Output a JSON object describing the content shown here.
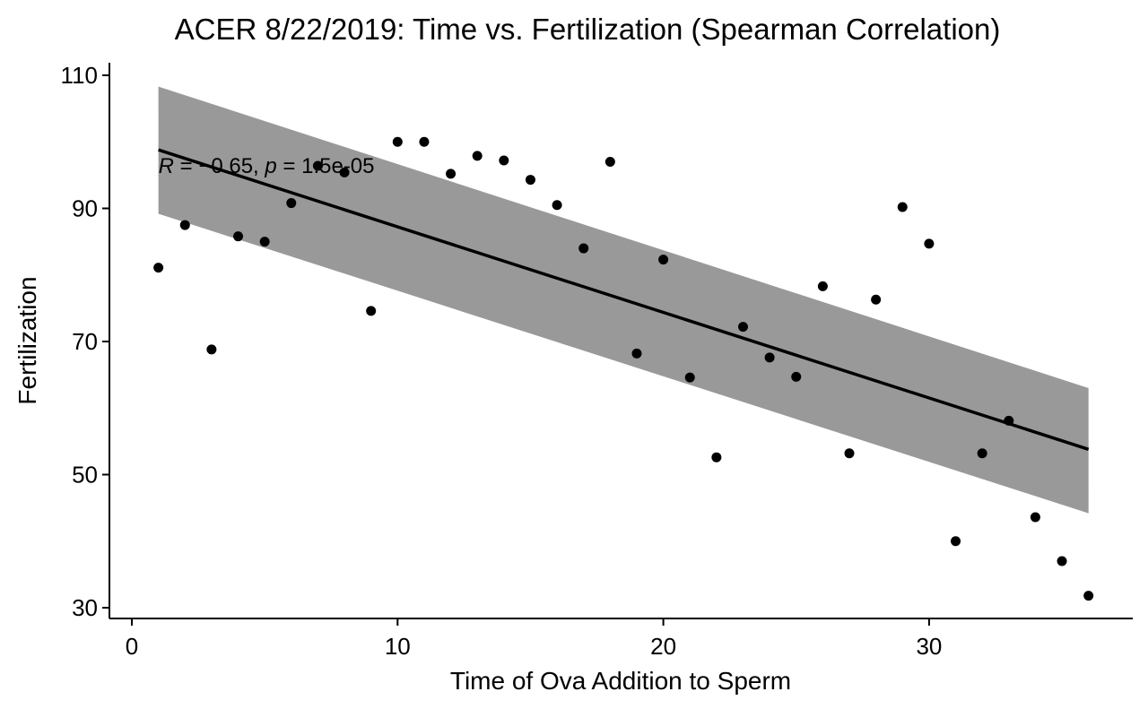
{
  "chart_data": {
    "type": "scatter",
    "title": "ACER 8/22/2019: Time vs. Fertilization (Spearman Correlation)",
    "xlabel": "Time of Ova Addition to Sperm",
    "ylabel": "Fertilization",
    "xlim": [
      -1,
      38
    ],
    "ylim": [
      28,
      111
    ],
    "x_ticks": [
      0,
      10,
      20,
      30
    ],
    "y_ticks": [
      30,
      50,
      70,
      90,
      110
    ],
    "grid": false,
    "legend": "none",
    "point_color": "#000000",
    "line_color": "#000000",
    "band_color": "#999999",
    "points": {
      "x": [
        1,
        2,
        3,
        4,
        5,
        6,
        7,
        8,
        9,
        10,
        11,
        12,
        13,
        14,
        15,
        16,
        17,
        18,
        19,
        20,
        21,
        22,
        23,
        24,
        25,
        26,
        27,
        28,
        29,
        30,
        31,
        32,
        33,
        34,
        35,
        36
      ],
      "y": [
        81.1,
        87.5,
        68.8,
        85.8,
        85.0,
        90.8,
        96.4,
        95.4,
        74.6,
        100.0,
        100.0,
        95.2,
        97.9,
        97.2,
        94.3,
        90.5,
        84.0,
        97.0,
        68.2,
        82.3,
        64.6,
        52.6,
        72.2,
        67.6,
        64.7,
        78.3,
        53.2,
        76.3,
        90.2,
        84.7,
        40.0,
        53.2,
        58.1,
        43.6,
        37.0,
        31.8
      ]
    },
    "regression": {
      "x": [
        1,
        36
      ],
      "y": [
        98.8,
        53.8
      ]
    },
    "confidence_band": {
      "x": [
        1,
        36
      ],
      "upper": [
        108.3,
        63.0
      ],
      "lower": [
        89.2,
        44.2
      ]
    },
    "annotation": {
      "r_symbol": "R",
      "r_text": " = −0.65, ",
      "p_symbol": "p",
      "p_text": " = 1.5e-05",
      "x": 1,
      "y": 96.5
    }
  }
}
